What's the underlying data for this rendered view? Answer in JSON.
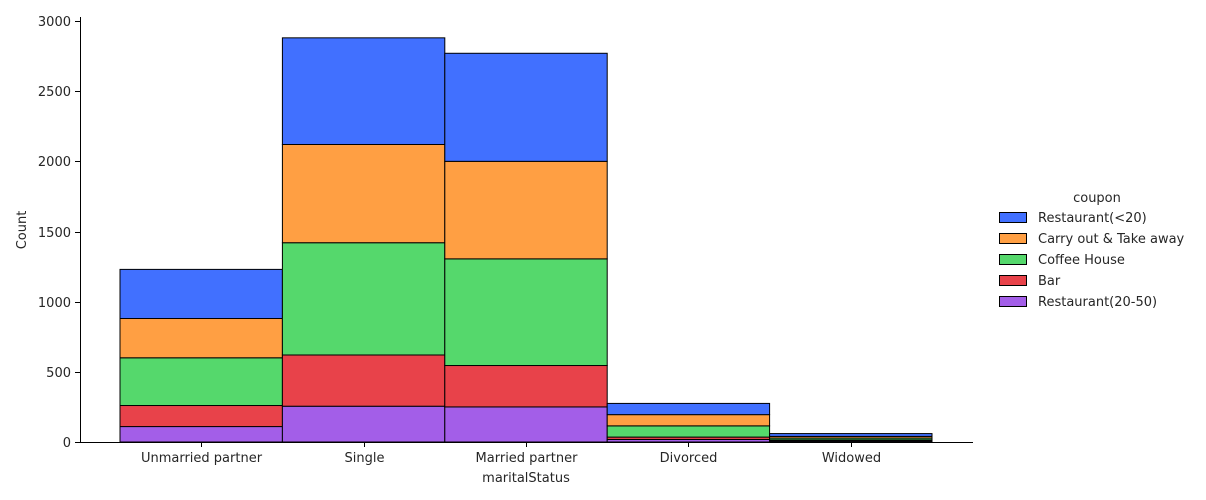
{
  "chart_data": {
    "type": "bar",
    "stacked": true,
    "xlabel": "maritalStatus",
    "ylabel": "Count",
    "ylim": [
      0,
      3000
    ],
    "yticks": [
      0,
      500,
      1000,
      1500,
      2000,
      2500,
      3000
    ],
    "categories": [
      "Unmarried partner",
      "Single",
      "Married partner",
      "Divorced",
      "Widowed"
    ],
    "legend": {
      "title": "coupon",
      "placement": "right"
    },
    "grid": false,
    "series": [
      {
        "name": "Restaurant(20-50)",
        "color": "#a35ee8",
        "values": [
          110,
          255,
          250,
          18,
          8
        ]
      },
      {
        "name": "Bar",
        "color": "#e8424a",
        "values": [
          150,
          365,
          295,
          17,
          7
        ]
      },
      {
        "name": "Coffee House",
        "color": "#55d86c",
        "values": [
          340,
          800,
          760,
          80,
          13
        ]
      },
      {
        "name": "Carry out & Take away",
        "color": "#ff9f43",
        "values": [
          280,
          700,
          695,
          80,
          12
        ]
      },
      {
        "name": "Restaurant(<20)",
        "color": "#4170ff",
        "values": [
          350,
          760,
          770,
          80,
          20
        ]
      }
    ],
    "legend_order": [
      "Restaurant(<20)",
      "Carry out & Take away",
      "Coffee House",
      "Bar",
      "Restaurant(20-50)"
    ]
  }
}
